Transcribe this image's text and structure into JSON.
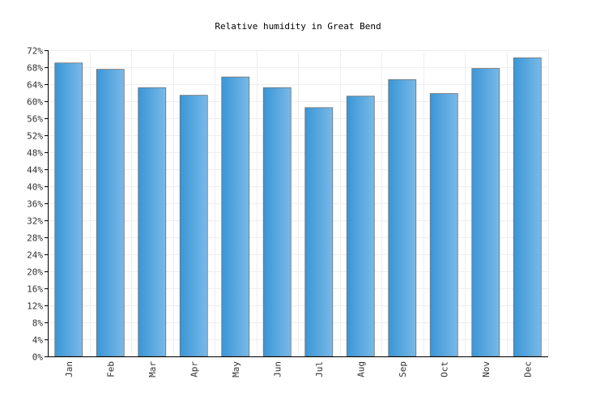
{
  "chart_data": {
    "type": "bar",
    "title": "Relative humidity in Great Bend",
    "xlabel": "",
    "ylabel": "",
    "categories": [
      "Jan",
      "Feb",
      "Mar",
      "Apr",
      "May",
      "Jun",
      "Jul",
      "Aug",
      "Sep",
      "Oct",
      "Nov",
      "Dec"
    ],
    "values": [
      69,
      67.5,
      63.2,
      61.4,
      65.7,
      63.2,
      58.5,
      61.2,
      65.1,
      61.8,
      67.7,
      70.2
    ],
    "ylim": [
      0,
      72
    ],
    "ytick_step": 4,
    "ytick_suffix": "%",
    "grid": true,
    "colors": {
      "bar_dark": "#3a96d6",
      "bar_light": "#79b9e8",
      "grid": "#eeeeee"
    }
  }
}
